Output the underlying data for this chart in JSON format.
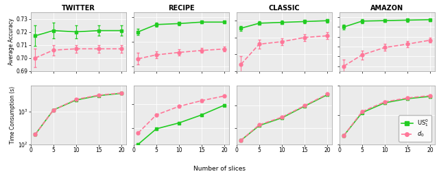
{
  "datasets": [
    "TWITTER",
    "RECIPE",
    "CLASSIC",
    "AMAZON"
  ],
  "x": [
    1,
    5,
    10,
    15,
    20
  ],
  "accuracy": {
    "TWITTER": {
      "US": [
        0.717,
        0.721,
        0.72,
        0.721,
        0.721
      ],
      "d0": [
        0.7,
        0.706,
        0.707,
        0.707,
        0.707
      ],
      "US_err": [
        0.008,
        0.006,
        0.005,
        0.004,
        0.004
      ],
      "d0_err": [
        0.007,
        0.004,
        0.003,
        0.003,
        0.003
      ],
      "ylim": [
        0.69,
        0.735
      ],
      "yticks": [
        0.69,
        0.7,
        0.71,
        0.72,
        0.73
      ]
    },
    "RECIPE": {
      "US": [
        0.52,
        0.535,
        0.537,
        0.54,
        0.54
      ],
      "d0": [
        0.465,
        0.473,
        0.478,
        0.482,
        0.485
      ],
      "US_err": [
        0.006,
        0.004,
        0.003,
        0.003,
        0.003
      ],
      "d0_err": [
        0.012,
        0.007,
        0.006,
        0.005,
        0.005
      ],
      "ylim": [
        0.44,
        0.56
      ],
      "yticks": [
        0.45,
        0.5,
        0.55
      ]
    },
    "CLASSIC": {
      "US": [
        0.951,
        0.957,
        0.958,
        0.959,
        0.96
      ],
      "d0": [
        0.908,
        0.932,
        0.935,
        0.94,
        0.942
      ],
      "US_err": [
        0.003,
        0.002,
        0.002,
        0.002,
        0.002
      ],
      "d0_err": [
        0.01,
        0.005,
        0.004,
        0.004,
        0.004
      ],
      "ylim": [
        0.9,
        0.97
      ],
      "yticks": [
        0.9,
        0.92,
        0.94,
        0.96
      ]
    },
    "AMAZON": {
      "US": [
        0.9,
        0.912,
        0.913,
        0.914,
        0.915
      ],
      "d0": [
        0.82,
        0.843,
        0.858,
        0.865,
        0.873
      ],
      "US_err": [
        0.005,
        0.004,
        0.003,
        0.003,
        0.003
      ],
      "d0_err": [
        0.014,
        0.009,
        0.007,
        0.006,
        0.005
      ],
      "ylim": [
        0.81,
        0.93
      ],
      "yticks": [
        0.82,
        0.84,
        0.86,
        0.88,
        0.9,
        0.92
      ]
    }
  },
  "time": {
    "TWITTER": {
      "US": [
        200,
        1100,
        2200,
        3000,
        3500
      ],
      "d0": [
        200,
        1100,
        2300,
        3100,
        3600
      ],
      "US_err": [
        15,
        80,
        150,
        200,
        250
      ],
      "d0_err": [
        15,
        80,
        150,
        200,
        250
      ],
      "ylim": [
        100,
        6000
      ],
      "yticks": [
        100,
        1000
      ]
    },
    "RECIPE": {
      "US": [
        200,
        900,
        1600,
        3500,
        9000
      ],
      "d0": [
        600,
        3500,
        8000,
        14000,
        22000
      ],
      "US_err": [
        20,
        90,
        160,
        350,
        900
      ],
      "d0_err": [
        60,
        350,
        800,
        1400,
        2200
      ],
      "ylim": [
        200,
        60000
      ],
      "yticks": [
        1000,
        10000
      ]
    },
    "CLASSIC": {
      "US": [
        300,
        1300,
        2800,
        9000,
        28000
      ],
      "d0": [
        300,
        1400,
        3000,
        9500,
        30000
      ],
      "US_err": [
        30,
        130,
        280,
        900,
        2800
      ],
      "d0_err": [
        30,
        140,
        300,
        950,
        3000
      ],
      "ylim": [
        200,
        70000
      ],
      "yticks": [
        1000,
        10000
      ]
    },
    "AMAZON": {
      "US": [
        2000,
        12000,
        26000,
        36000,
        43000
      ],
      "d0": [
        2000,
        13000,
        28000,
        38000,
        46000
      ],
      "US_err": [
        200,
        1200,
        2600,
        3600,
        4300
      ],
      "d0_err": [
        200,
        1300,
        2800,
        3800,
        4600
      ],
      "ylim": [
        1000,
        100000
      ],
      "yticks": [
        1000,
        10000
      ]
    }
  },
  "green_color": "#22CC22",
  "pink_color": "#FF7799",
  "bg_color": "#EBEBEB"
}
